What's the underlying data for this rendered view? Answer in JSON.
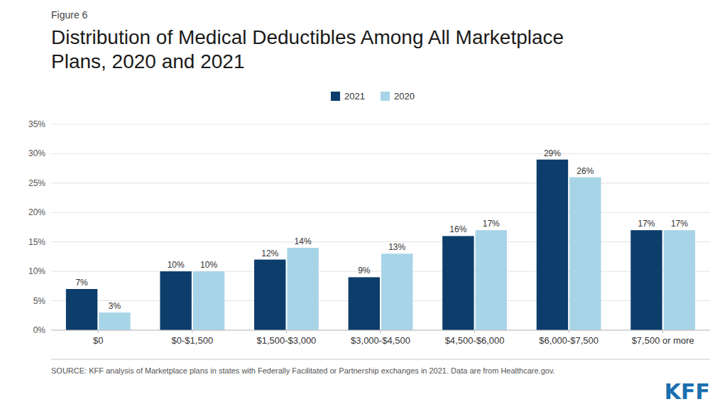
{
  "chart_data": {
    "type": "bar",
    "title": "Distribution of Medical Deductibles Among All Marketplace\nPlans, 2020 and 2021",
    "annotations": [
      {
        "text": "Figure 6"
      },
      {
        "text": "SOURCE: KFF analysis of Marketplace plans in states with Federally Facilitated or Partnership exchanges in 2021. Data are from Healthcare.gov."
      },
      {
        "text": "KFF",
        "color": "#1a6faf"
      }
    ],
    "categories": [
      "$0",
      "$0-$1,500",
      "$1,500-$3,000",
      "$3,000-$4,500",
      "$4,500-$6,000",
      "$6,000-$7,500",
      "$7,500 or more"
    ],
    "series": [
      {
        "name": "2021",
        "color": "#0d3d6b",
        "values": [
          7,
          10,
          12,
          9,
          16,
          29,
          17
        ],
        "value_labels": [
          "7%",
          "10%",
          "12%",
          "9%",
          "16%",
          "29%",
          "17%"
        ]
      },
      {
        "name": "2020",
        "color": "#a8d4e8",
        "values": [
          3,
          10,
          14,
          13,
          17,
          26,
          17
        ],
        "value_labels": [
          "3%",
          "10%",
          "14%",
          "13%",
          "17%",
          "26%",
          "17%"
        ]
      }
    ],
    "ylim": [
      0,
      35
    ],
    "yticks": [
      {
        "value": 0,
        "label": "0%"
      },
      {
        "value": 5,
        "label": "5%"
      },
      {
        "value": 10,
        "label": "10%"
      },
      {
        "value": 15,
        "label": "15%"
      },
      {
        "value": 20,
        "label": "20%"
      },
      {
        "value": 25,
        "label": "25%"
      },
      {
        "value": 30,
        "label": "30%"
      },
      {
        "value": 35,
        "label": "35%"
      }
    ],
    "grid": true,
    "legend": "top",
    "data_labels": true
  }
}
